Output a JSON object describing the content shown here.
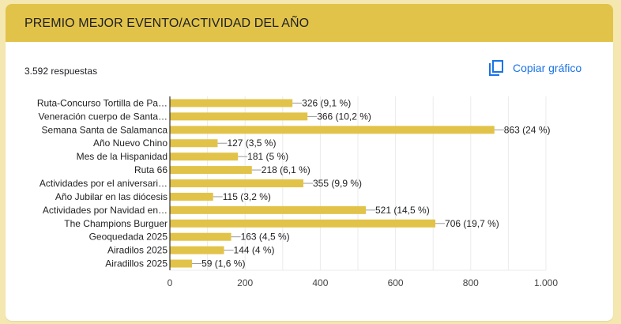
{
  "header": {
    "title": "PREMIO MEJOR EVENTO/ACTIVIDAD DEL AÑO"
  },
  "summary": {
    "responses": "3.592 respuestas"
  },
  "toolbar": {
    "copy_label": "Copiar gráfico",
    "copy_icon": "copy-icon"
  },
  "colors": {
    "header": "#e2c349",
    "bar": "#e2c349",
    "accent": "#1a73e8",
    "page_bg": "#f5e7b0"
  },
  "chart_data": {
    "type": "bar",
    "orientation": "horizontal",
    "title": "",
    "xlabel": "",
    "ylabel": "",
    "xlim": [
      0,
      1000
    ],
    "grid": true,
    "categories": [
      "Ruta-Concurso Tortilla de Pa…",
      "Veneración cuerpo de Santa…",
      "Semana Santa de Salamanca",
      "Año Nuevo Chino",
      "Mes de la Hispanidad",
      "Ruta 66",
      "Actividades por el aniversari…",
      "Año Jubilar en las diócesis",
      "Actividades por Navidad en…",
      "The Champions Burguer",
      "Geoquedada 2025",
      "Airadilos 2025",
      "Airadillos 2025"
    ],
    "values": [
      326,
      366,
      863,
      127,
      181,
      218,
      355,
      115,
      521,
      706,
      163,
      144,
      59
    ],
    "data_labels": [
      "326 (9,1 %)",
      "366 (10,2 %)",
      "863 (24 %)",
      "127 (3,5 %)",
      "181 (5 %)",
      "218 (6,1 %)",
      "355 (9,9 %)",
      "115 (3,2 %)",
      "521 (14,5 %)",
      "706 (19,7 %)",
      "163 (4,5 %)",
      "144 (4 %)",
      "59 (1,6 %)"
    ],
    "x_ticks": [
      0,
      200,
      400,
      600,
      800,
      1000
    ],
    "x_tick_labels": [
      "0",
      "200",
      "400",
      "600",
      "800",
      "1.000"
    ]
  }
}
